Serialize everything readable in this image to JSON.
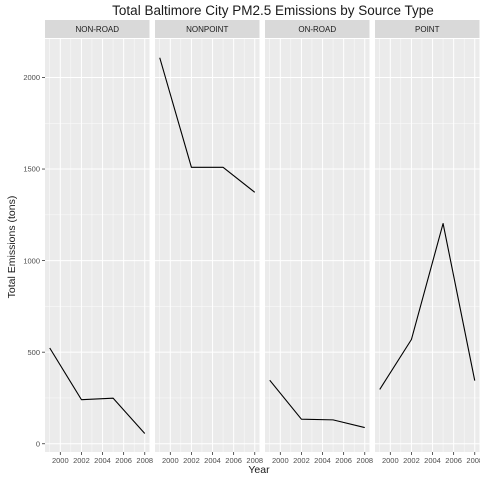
{
  "chart_data": {
    "type": "line",
    "title": "Total Baltimore City PM2.5 Emissions by Source Type",
    "xlabel": "Year",
    "ylabel": "Total Emissions (tons)",
    "x": [
      1999,
      2002,
      2005,
      2008
    ],
    "x_ticks": [
      2000,
      2002,
      2004,
      2006,
      2008
    ],
    "x_tick_labels": [
      "2000",
      "2002",
      "2004",
      "2006",
      "2008"
    ],
    "xlim": [
      1998.55,
      2008.45
    ],
    "y_ticks": [
      0,
      500,
      1000,
      1500,
      2000
    ],
    "y_tick_labels": [
      "0",
      "500",
      "1000",
      "1500",
      "2000"
    ],
    "ylim": [
      -45,
      2210
    ],
    "grid": true,
    "facets": [
      {
        "label": "NON-ROAD",
        "values": [
          522.94,
          240.85,
          248.93,
          55.82
        ]
      },
      {
        "label": "NONPOINT",
        "values": [
          2107.63,
          1509.5,
          1509.5,
          1373.21
        ]
      },
      {
        "label": "ON-ROAD",
        "values": [
          346.82,
          134.31,
          130.43,
          88.28
        ]
      },
      {
        "label": "POINT",
        "values": [
          296.8,
          569.26,
          1202.49,
          344.98
        ]
      }
    ],
    "colors": {
      "panel_bg": "#ebebeb",
      "strip_bg": "#d9d9d9",
      "grid_major": "#ffffff",
      "line": "#000000"
    }
  }
}
